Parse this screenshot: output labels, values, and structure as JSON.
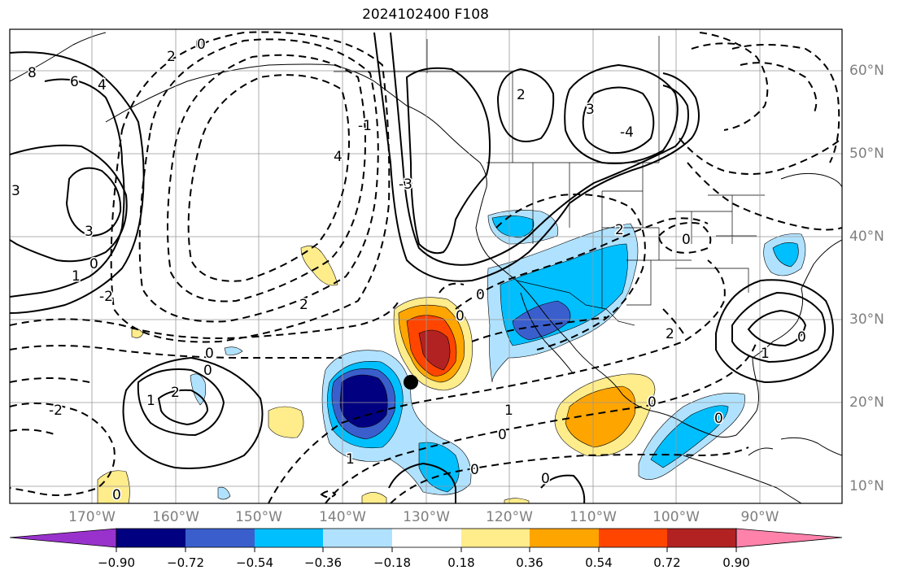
{
  "title": "2024102400 F108",
  "map": {
    "projection": "PlateCarree",
    "lon_range": [
      -180,
      -80
    ],
    "lat_range": [
      8,
      65
    ],
    "lon_labels": [
      "170°W",
      "160°W",
      "150°W",
      "140°W",
      "130°W",
      "120°W",
      "110°W",
      "100°W",
      "90°W"
    ],
    "lat_labels": [
      "60°N",
      "50°N",
      "40°N",
      "30°N",
      "20°N",
      "10°N"
    ],
    "contour_labels": [
      "8",
      "6",
      "4",
      "3",
      "2",
      "0",
      "-1",
      "-2",
      "-3",
      "-4",
      "1",
      "-2",
      "0"
    ],
    "marker": {
      "lon": -130,
      "lat": 22.5,
      "shape": "black-dot"
    }
  },
  "colorbar": {
    "tick_labels": [
      "−0.90",
      "−0.72",
      "−0.54",
      "−0.36",
      "−0.18",
      "0.18",
      "0.36",
      "0.54",
      "0.72",
      "0.90"
    ],
    "colors": [
      "#9932cc",
      "#000080",
      "#3a5fcd",
      "#00bfff",
      "#b0e2ff",
      "#ffffff",
      "#ffec8b",
      "#ffa500",
      "#ff4500",
      "#b22222",
      "#ff82ab"
    ]
  }
}
